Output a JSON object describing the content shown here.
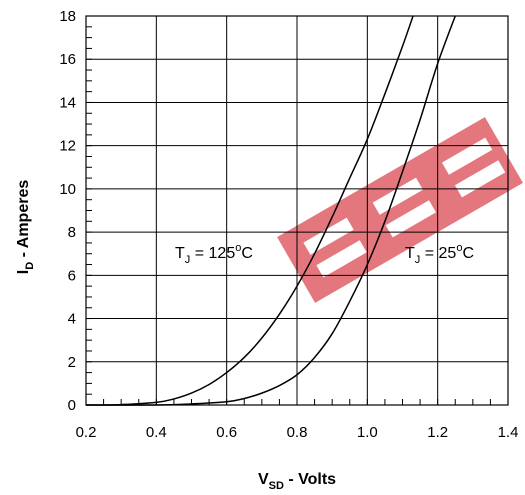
{
  "chart_data": {
    "type": "line",
    "xlabel": {
      "main": "V",
      "sub": "SD",
      "rest": " - Volts"
    },
    "ylabel": {
      "main": "I",
      "sub": "D",
      "rest": " - Amperes"
    },
    "xlim": [
      0.2,
      1.4
    ],
    "ylim": [
      0,
      18
    ],
    "x_ticks": [
      "0.2",
      "0.4",
      "0.6",
      "0.8",
      "1.0",
      "1.2",
      "1.4"
    ],
    "y_ticks": [
      "0",
      "2",
      "4",
      "6",
      "8",
      "10",
      "12",
      "14",
      "16",
      "18"
    ],
    "grid": true,
    "series": [
      {
        "label": {
          "main": "T",
          "sub": "J",
          "rest": " = 125",
          "sup": "o",
          "unit": "C"
        },
        "x": [
          0.2,
          0.3,
          0.4,
          0.45,
          0.5,
          0.55,
          0.6,
          0.65,
          0.7,
          0.75,
          0.8,
          0.85,
          0.9,
          0.95,
          1.0,
          1.05,
          1.1,
          1.13
        ],
        "y": [
          0.0,
          0.02,
          0.12,
          0.28,
          0.55,
          0.95,
          1.5,
          2.2,
          3.1,
          4.2,
          5.5,
          7.0,
          8.7,
          10.5,
          12.3,
          14.4,
          16.6,
          18.0
        ]
      },
      {
        "label": {
          "main": "T",
          "sub": "J",
          "rest": " = 25",
          "sup": "o",
          "unit": "C"
        },
        "x": [
          0.2,
          0.4,
          0.5,
          0.6,
          0.65,
          0.7,
          0.75,
          0.8,
          0.85,
          0.9,
          0.95,
          1.0,
          1.05,
          1.1,
          1.15,
          1.2,
          1.25
        ],
        "y": [
          0.0,
          0.0,
          0.05,
          0.15,
          0.3,
          0.55,
          0.9,
          1.4,
          2.2,
          3.3,
          4.8,
          6.5,
          8.5,
          10.8,
          13.2,
          15.8,
          18.0
        ]
      }
    ]
  },
  "watermark": {
    "color": "#e06068"
  }
}
